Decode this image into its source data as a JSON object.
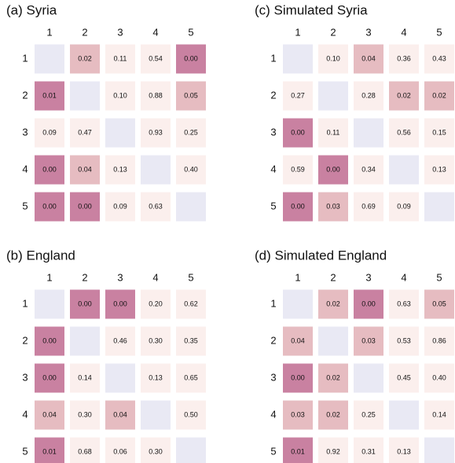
{
  "chart_data": [
    {
      "type": "heatmap",
      "title": "(a) Syria",
      "categories": [
        "1",
        "2",
        "3",
        "4",
        "5"
      ],
      "values": [
        [
          null,
          0.02,
          0.11,
          0.54,
          0.0
        ],
        [
          0.01,
          null,
          0.1,
          0.88,
          0.05
        ],
        [
          0.09,
          0.47,
          null,
          0.93,
          0.25
        ],
        [
          0.0,
          0.04,
          0.13,
          null,
          0.4
        ],
        [
          0.0,
          0.0,
          0.09,
          0.63,
          null
        ]
      ],
      "value_labels": [
        [
          null,
          "0.02",
          "0.11",
          "0.54",
          "0.00"
        ],
        [
          "0.01",
          null,
          "0.10",
          "0.88",
          "0.05"
        ],
        [
          "0.09",
          "0.47",
          null,
          "0.93",
          "0.25"
        ],
        [
          "0.00",
          "0.04",
          "0.13",
          null,
          "0.40"
        ],
        [
          "0.00",
          "0.00",
          "0.09",
          "0.63",
          null
        ]
      ],
      "thresholds": [
        0.01,
        0.05
      ],
      "colors": [
        "#c981a1",
        "#e6bcc1",
        "#fbefed"
      ],
      "diagonal_color": "#e9e9f4"
    },
    {
      "type": "heatmap",
      "title": "(b) England",
      "categories": [
        "1",
        "2",
        "3",
        "4",
        "5"
      ],
      "values": [
        [
          null,
          0.0,
          0.0,
          0.2,
          0.62
        ],
        [
          0.0,
          null,
          0.46,
          0.3,
          0.35
        ],
        [
          0.0,
          0.14,
          null,
          0.13,
          0.65
        ],
        [
          0.04,
          0.3,
          0.04,
          null,
          0.5
        ],
        [
          0.01,
          0.68,
          0.06,
          0.3,
          null
        ]
      ],
      "value_labels": [
        [
          null,
          "0.00",
          "0.00",
          "0.20",
          "0.62"
        ],
        [
          "0.00",
          null,
          "0.46",
          "0.30",
          "0.35"
        ],
        [
          "0.00",
          "0.14",
          null,
          "0.13",
          "0.65"
        ],
        [
          "0.04",
          "0.30",
          "0.04",
          null,
          "0.50"
        ],
        [
          "0.01",
          "0.68",
          "0.06",
          "0.30",
          null
        ]
      ],
      "thresholds": [
        0.01,
        0.05
      ],
      "colors": [
        "#c981a1",
        "#e6bcc1",
        "#fbefed"
      ],
      "diagonal_color": "#e9e9f4"
    },
    {
      "type": "heatmap",
      "title": "(c) Simulated Syria",
      "categories": [
        "1",
        "2",
        "3",
        "4",
        "5"
      ],
      "values": [
        [
          null,
          0.1,
          0.04,
          0.36,
          0.43
        ],
        [
          0.27,
          null,
          0.28,
          0.02,
          0.02
        ],
        [
          0.0,
          0.11,
          null,
          0.56,
          0.15
        ],
        [
          0.59,
          0.0,
          0.34,
          null,
          0.13
        ],
        [
          0.0,
          0.03,
          0.69,
          0.09,
          null
        ]
      ],
      "value_labels": [
        [
          null,
          "0.10",
          "0.04",
          "0.36",
          "0.43"
        ],
        [
          "0.27",
          null,
          "0.28",
          "0.02",
          "0.02"
        ],
        [
          "0.00",
          "0.11",
          null,
          "0.56",
          "0.15"
        ],
        [
          "0.59",
          "0.00",
          "0.34",
          null,
          "0.13"
        ],
        [
          "0.00",
          "0.03",
          "0.69",
          "0.09",
          null
        ]
      ],
      "thresholds": [
        0.01,
        0.05
      ],
      "colors": [
        "#c981a1",
        "#e6bcc1",
        "#fbefed"
      ],
      "diagonal_color": "#e9e9f4"
    },
    {
      "type": "heatmap",
      "title": "(d) Simulated England",
      "categories": [
        "1",
        "2",
        "3",
        "4",
        "5"
      ],
      "values": [
        [
          null,
          0.02,
          0.0,
          0.63,
          0.05
        ],
        [
          0.04,
          null,
          0.03,
          0.53,
          0.86
        ],
        [
          0.0,
          0.02,
          null,
          0.45,
          0.4
        ],
        [
          0.03,
          0.02,
          0.25,
          null,
          0.14
        ],
        [
          0.01,
          0.92,
          0.31,
          0.13,
          null
        ]
      ],
      "value_labels": [
        [
          null,
          "0.02",
          "0.00",
          "0.63",
          "0.05"
        ],
        [
          "0.04",
          null,
          "0.03",
          "0.53",
          "0.86"
        ],
        [
          "0.00",
          "0.02",
          null,
          "0.45",
          "0.40"
        ],
        [
          "0.03",
          "0.02",
          "0.25",
          null,
          "0.14"
        ],
        [
          "0.01",
          "0.92",
          "0.31",
          "0.13",
          null
        ]
      ],
      "thresholds": [
        0.01,
        0.05
      ],
      "colors": [
        "#c981a1",
        "#e6bcc1",
        "#fbefed"
      ],
      "diagonal_color": "#e9e9f4"
    }
  ]
}
